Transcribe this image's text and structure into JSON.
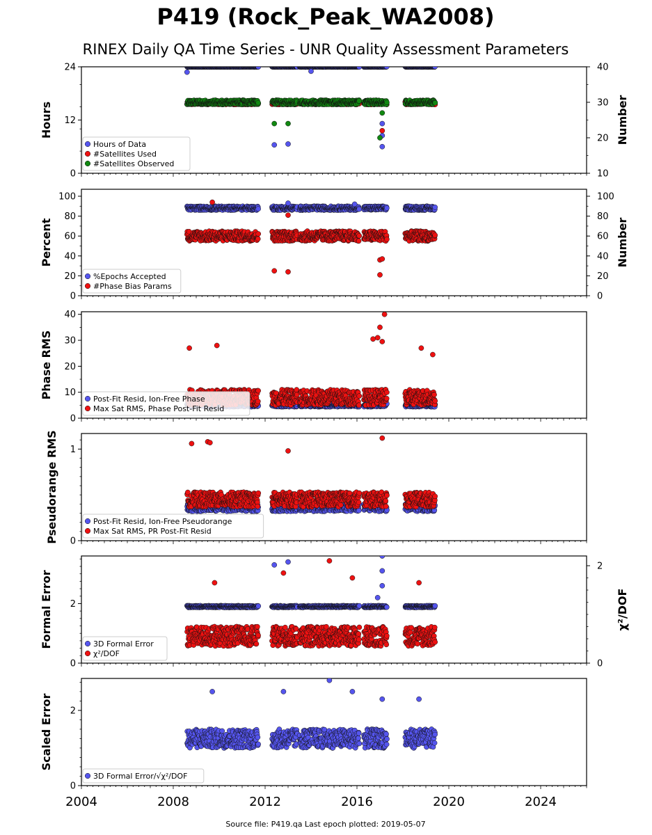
{
  "title": "P419 (Rock_Peak_WA2008)",
  "subtitle": "RINEX Daily QA Time Series - UNR Quality Assessment Parameters",
  "source_note": "Source file: P419.qa Last epoch plotted: 2019-05-07",
  "colors": {
    "blue": "#5555ee",
    "red": "#ee1111",
    "green": "#118811"
  },
  "chart_data": {
    "type": "scatter",
    "x_axis": {
      "range": [
        2004,
        2026
      ],
      "tick_labels": [
        "2004",
        "2008",
        "2012",
        "2016",
        "2020",
        "2024"
      ]
    },
    "segments": [
      [
        2008.6,
        2011.7
      ],
      [
        2012.3,
        2013.4
      ],
      [
        2013.5,
        2016.1
      ],
      [
        2016.3,
        2017.3
      ],
      [
        2018.1,
        2019.4
      ]
    ],
    "panels": [
      {
        "id": "hours",
        "ylabel": "Hours",
        "ylim": [
          0,
          24
        ],
        "yticks": [
          "0",
          "12",
          "24"
        ],
        "ylabel_right": "Number",
        "ylim_right": [
          10,
          40
        ],
        "yticks_right": [
          "10",
          "20",
          "30",
          "40"
        ],
        "legend": [
          "Hours of Data",
          "#Satellites Used",
          "#Satellites Observed"
        ],
        "series": [
          {
            "name": "Hours of Data",
            "color": "blue",
            "axis": "left",
            "typical": 24.0,
            "spread": 0.05,
            "outliers": [
              [
                2008.6,
                22.8
              ],
              [
                2012.4,
                6.4
              ],
              [
                2013.0,
                6.6
              ],
              [
                2014.0,
                23.0
              ],
              [
                2017.1,
                6.0
              ],
              [
                2017.1,
                11.2
              ],
              [
                2017.1,
                8.5
              ]
            ]
          },
          {
            "name": "#Satellites Used",
            "color": "red",
            "axis": "left",
            "typical": 15.8,
            "spread": 0.3,
            "outliers": [
              [
                2009.7,
                15.8
              ],
              [
                2017.1,
                9.6
              ]
            ]
          },
          {
            "name": "#Satellites Observed",
            "color": "green",
            "axis": "right",
            "typical": 30.0,
            "spread": 0.6,
            "outliers": [
              [
                2012.4,
                24.0
              ],
              [
                2013.0,
                24.0
              ],
              [
                2017.0,
                20.0
              ],
              [
                2017.1,
                27.0
              ]
            ]
          }
        ]
      },
      {
        "id": "percent",
        "ylabel": "Percent",
        "ylim": [
          0,
          107
        ],
        "yticks": [
          "0",
          "20",
          "40",
          "60",
          "80",
          "100"
        ],
        "ylabel_right": "Number",
        "ylim_right": [
          0,
          107
        ],
        "yticks_right": [
          "0",
          "20",
          "40",
          "60",
          "80",
          "100"
        ],
        "legend": [
          "%Epochs Accepted",
          "#Phase Bias Params"
        ],
        "series": [
          {
            "name": "%Epochs Accepted",
            "color": "blue",
            "axis": "left",
            "typical": 88.0,
            "spread": 2.0,
            "outliers": [
              [
                2013.0,
                93.0
              ],
              [
                2015.9,
                92.0
              ]
            ]
          },
          {
            "name": "#Phase Bias Params",
            "color": "red",
            "axis": "right",
            "typical": 60.0,
            "spread": 5.0,
            "outliers": [
              [
                2009.7,
                94.0
              ],
              [
                2012.4,
                25.0
              ],
              [
                2013.0,
                24.0
              ],
              [
                2017.0,
                21.0
              ],
              [
                2017.0,
                36.0
              ],
              [
                2017.1,
                37.0
              ],
              [
                2013.0,
                81.0
              ]
            ]
          }
        ]
      },
      {
        "id": "phase_rms",
        "ylabel": "Phase RMS",
        "ylim": [
          0,
          41
        ],
        "yticks": [
          "0",
          "10",
          "20",
          "30",
          "40"
        ],
        "legend": [
          "Post-Fit Resid, Ion-Free Phase",
          "Max Sat RMS, Phase Post-Fit Resid"
        ],
        "series": [
          {
            "name": "Post-Fit Resid, Ion-Free Phase",
            "color": "blue",
            "axis": "left",
            "typical": 5.0,
            "spread": 0.6,
            "outliers": []
          },
          {
            "name": "Max Sat RMS, Phase Post-Fit Resid",
            "color": "red",
            "axis": "left",
            "typical": 8.0,
            "spread": 3.0,
            "outliers": [
              [
                2008.7,
                27.0
              ],
              [
                2009.9,
                28.0
              ],
              [
                2016.7,
                30.5
              ],
              [
                2016.9,
                31.0
              ],
              [
                2017.0,
                35.0
              ],
              [
                2017.1,
                29.5
              ],
              [
                2017.2,
                40.0
              ],
              [
                2018.8,
                27.0
              ],
              [
                2019.3,
                24.5
              ]
            ]
          }
        ]
      },
      {
        "id": "pseudorange_rms",
        "ylabel": "Pseudorange RMS",
        "ylim": [
          0,
          1.17
        ],
        "yticks": [
          "0",
          "1"
        ],
        "legend": [
          "Post-Fit Resid, Ion-Free Pseudorange",
          "Max Sat RMS, PR Post-Fit Resid"
        ],
        "series": [
          {
            "name": "Post-Fit Resid, Ion-Free Pseudorange",
            "color": "blue",
            "axis": "left",
            "typical": 0.36,
            "spread": 0.04,
            "outliers": []
          },
          {
            "name": "Max Sat RMS, PR Post-Fit Resid",
            "color": "red",
            "axis": "left",
            "typical": 0.45,
            "spread": 0.08,
            "outliers": [
              [
                2008.8,
                1.06
              ],
              [
                2009.5,
                1.08
              ],
              [
                2009.6,
                1.07
              ],
              [
                2013.0,
                0.98
              ],
              [
                2017.1,
                1.12
              ]
            ]
          }
        ]
      },
      {
        "id": "formal_error",
        "ylabel": "Formal Error",
        "ylim": [
          0,
          3.6
        ],
        "yticks": [
          "0",
          "2"
        ],
        "ylabel_right": "χ²/DOF",
        "ylim_right": [
          0,
          2.2
        ],
        "yticks_right": [
          "0",
          "2"
        ],
        "legend": [
          "3D Formal Error",
          "χ²/DOF"
        ],
        "series": [
          {
            "name": "3D Formal Error",
            "color": "blue",
            "axis": "left",
            "typical": 1.9,
            "spread": 0.03,
            "outliers": [
              [
                2012.4,
                3.3
              ],
              [
                2013.0,
                3.4
              ],
              [
                2017.1,
                3.6
              ],
              [
                2017.1,
                3.1
              ],
              [
                2017.1,
                2.6
              ],
              [
                2016.9,
                2.2
              ]
            ]
          },
          {
            "name": "χ²/DOF",
            "color": "red",
            "axis": "right",
            "typical": 0.55,
            "spread": 0.2,
            "outliers": [
              [
                2009.8,
                1.65
              ],
              [
                2012.8,
                1.85
              ],
              [
                2014.8,
                2.1
              ],
              [
                2015.8,
                1.75
              ],
              [
                2018.7,
                1.65
              ]
            ]
          }
        ]
      },
      {
        "id": "scaled_error",
        "ylabel": "Scaled Error",
        "ylim": [
          0,
          2.85
        ],
        "yticks": [
          "0",
          "2"
        ],
        "legend": [
          "3D Formal Error/√χ²/DOF"
        ],
        "series": [
          {
            "name": "3D Formal Error/√χ²/DOF",
            "color": "blue",
            "axis": "left",
            "typical": 1.25,
            "spread": 0.25,
            "outliers": [
              [
                2009.7,
                2.5
              ],
              [
                2012.8,
                2.5
              ],
              [
                2014.8,
                2.8
              ],
              [
                2015.8,
                2.5
              ],
              [
                2017.1,
                2.3
              ],
              [
                2018.7,
                2.3
              ]
            ]
          }
        ]
      }
    ]
  }
}
